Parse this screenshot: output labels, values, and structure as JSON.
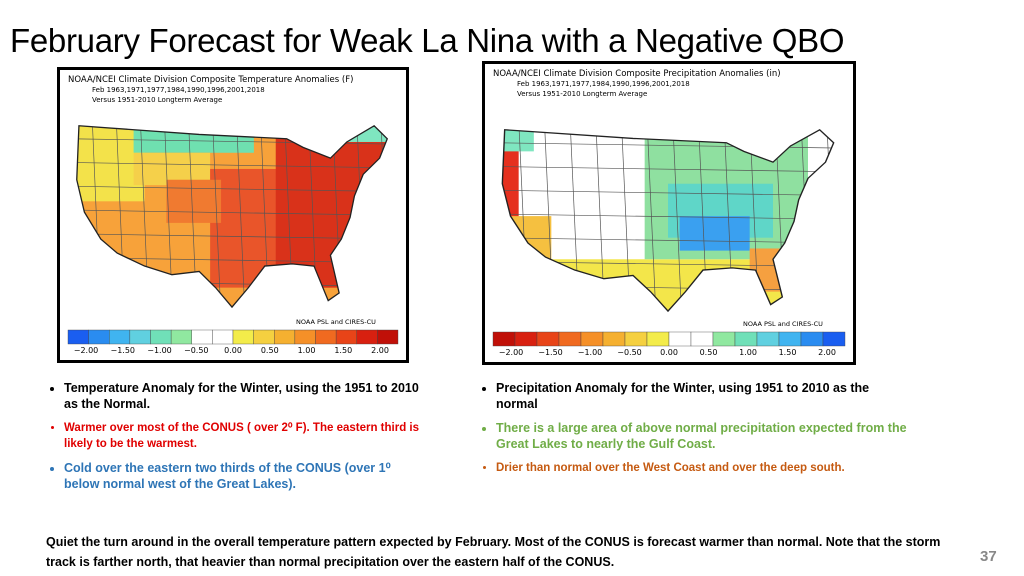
{
  "title": "February Forecast for Weak La Nina with a Negative QBO",
  "maps": [
    {
      "header": [
        "NOAA/NCEI Climate Division Composite Temperature Anomalies (F)",
        "Feb   1963,1971,1977,1984,1990,1996,2001,2018",
        "Versus 1951-2010 Longterm Average"
      ],
      "credit": "NOAA PSL and CIRES-CU",
      "colorbar_labels": [
        "−2.00",
        "−1.50",
        "−1.00",
        "−0.50",
        "0.00",
        "0.50",
        "1.00",
        "1.50",
        "2.00"
      ]
    },
    {
      "header": [
        "NOAA/NCEI Climate Division Composite Precipitation Anomalies (in)",
        "Feb   1963,1971,1977,1984,1990,1996,2001,2018",
        "Versus 1951-2010 Longterm Average"
      ],
      "credit": "NOAA PSL and CIRES-CU",
      "colorbar_labels": [
        "−2.00",
        "−1.50",
        "−1.00",
        "−0.50",
        "0.00",
        "0.50",
        "1.00",
        "1.50",
        "2.00"
      ]
    }
  ],
  "left_bullets": [
    "Temperature Anomaly for the Winter, using the 1951 to 2010 as the Normal.",
    "Warmer over  most of the CONUS ( over  2⁰ F). The eastern third is likely to be the warmest.",
    "Cold over the eastern two thirds of the CONUS (over 1⁰ below normal  west of the Great Lakes)."
  ],
  "right_bullets": [
    "Precipitation Anomaly for the Winter,  using 1951 to 2010 as the normal",
    "There is a large area of above normal precipitation expected from the Great Lakes to nearly the Gulf Coast.",
    "Drier than normal over the West Coast and over the deep south."
  ],
  "footer": "Quiet the turn around in the overall temperature pattern expected by February. Most of the CONUS is forecast warmer than normal.  Note that the storm track is farther north, that heavier than normal precipitation over the eastern half of the CONUS.",
  "page_number": "37"
}
